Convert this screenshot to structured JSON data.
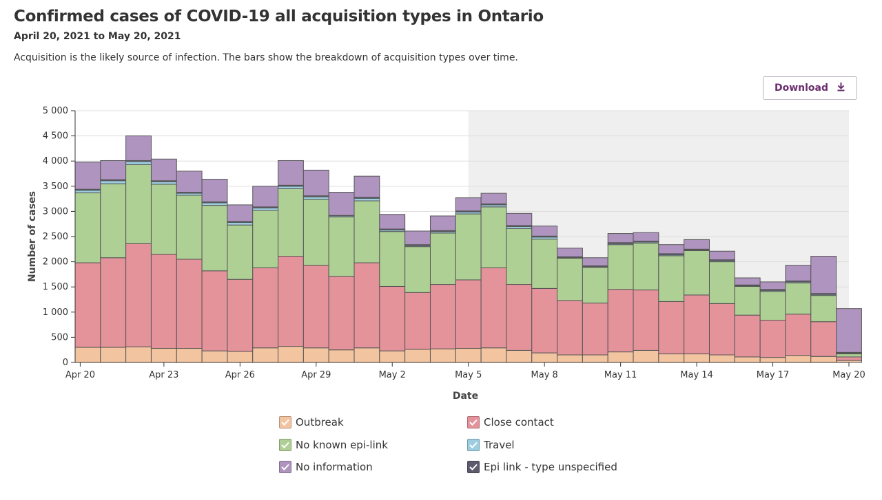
{
  "header": {
    "title": "Confirmed cases of COVID-19 all acquisition types in Ontario",
    "date_range": "April 20, 2021 to May 20, 2021",
    "description": "Acquisition is the likely source of infection. The bars show the breakdown of acquisition types over time."
  },
  "toolbar": {
    "download_label": "Download",
    "download_icon": "download-icon"
  },
  "chart_data": {
    "type": "bar",
    "stacked": true,
    "xlabel": "Date",
    "ylabel": "Number of cases",
    "ylim": [
      0,
      5000
    ],
    "y_ticks": [
      "5 000",
      "4 500",
      "4 000",
      "3 500",
      "3 000",
      "2 500",
      "2 000",
      "1 500",
      "1 000",
      "500",
      "0"
    ],
    "y_tick_values": [
      5000,
      4500,
      4000,
      3500,
      3000,
      2500,
      2000,
      1500,
      1000,
      500,
      0
    ],
    "x_tick_labels": [
      "Apr 20",
      "Apr 23",
      "Apr 26",
      "Apr 29",
      "May 2",
      "May 5",
      "May 8",
      "May 11",
      "May 14",
      "May 17",
      "May 20"
    ],
    "x_tick_dates": [
      "2021-04-20",
      "2021-04-23",
      "2021-04-26",
      "2021-04-29",
      "2021-05-02",
      "2021-05-05",
      "2021-05-08",
      "2021-05-11",
      "2021-05-14",
      "2021-05-17",
      "2021-05-20"
    ],
    "shaded_from": "2021-05-05",
    "grid": true,
    "legend_position": "bottom",
    "categories": [
      "2021-04-20",
      "2021-04-21",
      "2021-04-22",
      "2021-04-23",
      "2021-04-24",
      "2021-04-25",
      "2021-04-26",
      "2021-04-27",
      "2021-04-28",
      "2021-04-29",
      "2021-04-30",
      "2021-05-01",
      "2021-05-02",
      "2021-05-03",
      "2021-05-04",
      "2021-05-05",
      "2021-05-06",
      "2021-05-07",
      "2021-05-08",
      "2021-05-09",
      "2021-05-10",
      "2021-05-11",
      "2021-05-12",
      "2021-05-13",
      "2021-05-14",
      "2021-05-15",
      "2021-05-16",
      "2021-05-17",
      "2021-05-18",
      "2021-05-19",
      "2021-05-20"
    ],
    "series": [
      {
        "name": "Outbreak",
        "color": "#f3c4a0",
        "values": [
          300,
          300,
          310,
          280,
          280,
          230,
          220,
          290,
          320,
          290,
          250,
          290,
          230,
          260,
          270,
          280,
          290,
          240,
          190,
          150,
          150,
          210,
          240,
          170,
          170,
          150,
          110,
          100,
          140,
          120,
          40
        ]
      },
      {
        "name": "Close contact",
        "color": "#e4939b",
        "values": [
          1680,
          1780,
          2050,
          1870,
          1770,
          1590,
          1430,
          1590,
          1790,
          1640,
          1460,
          1690,
          1280,
          1130,
          1280,
          1360,
          1590,
          1310,
          1280,
          1080,
          1030,
          1240,
          1200,
          1040,
          1170,
          1020,
          830,
          740,
          820,
          690,
          70
        ]
      },
      {
        "name": "No known epi-link",
        "color": "#afd095",
        "values": [
          1390,
          1470,
          1570,
          1390,
          1270,
          1300,
          1080,
          1140,
          1340,
          1310,
          1180,
          1230,
          1090,
          910,
          1020,
          1310,
          1210,
          1110,
          980,
          840,
          710,
          890,
          930,
          910,
          880,
          830,
          570,
          570,
          620,
          520,
          60
        ]
      },
      {
        "name": "Travel",
        "color": "#9ccde0",
        "values": [
          50,
          60,
          60,
          50,
          40,
          50,
          50,
          50,
          50,
          50,
          20,
          50,
          30,
          20,
          30,
          40,
          40,
          40,
          40,
          10,
          10,
          20,
          20,
          20,
          10,
          20,
          10,
          20,
          20,
          20,
          10
        ]
      },
      {
        "name": "Epi link - type unspecified",
        "color": "#5d5a6e",
        "values": [
          20,
          20,
          20,
          20,
          20,
          20,
          20,
          20,
          20,
          20,
          10,
          20,
          20,
          20,
          20,
          20,
          20,
          20,
          20,
          20,
          20,
          20,
          20,
          20,
          20,
          20,
          20,
          20,
          20,
          20,
          20
        ]
      },
      {
        "name": "No information",
        "color": "#ae94be",
        "values": [
          540,
          380,
          490,
          430,
          420,
          450,
          330,
          410,
          490,
          510,
          460,
          420,
          290,
          270,
          290,
          260,
          210,
          240,
          200,
          170,
          160,
          180,
          170,
          180,
          190,
          170,
          140,
          150,
          310,
          740,
          870
        ]
      }
    ]
  },
  "legend": {
    "items": [
      {
        "label": "Outbreak",
        "color": "#f3c4a0"
      },
      {
        "label": "Close contact",
        "color": "#e4939b"
      },
      {
        "label": "No known epi-link",
        "color": "#afd095"
      },
      {
        "label": "Travel",
        "color": "#9ccde0"
      },
      {
        "label": "No information",
        "color": "#ae94be"
      },
      {
        "label": "Epi link - type unspecified",
        "color": "#5d5a6e"
      }
    ]
  }
}
